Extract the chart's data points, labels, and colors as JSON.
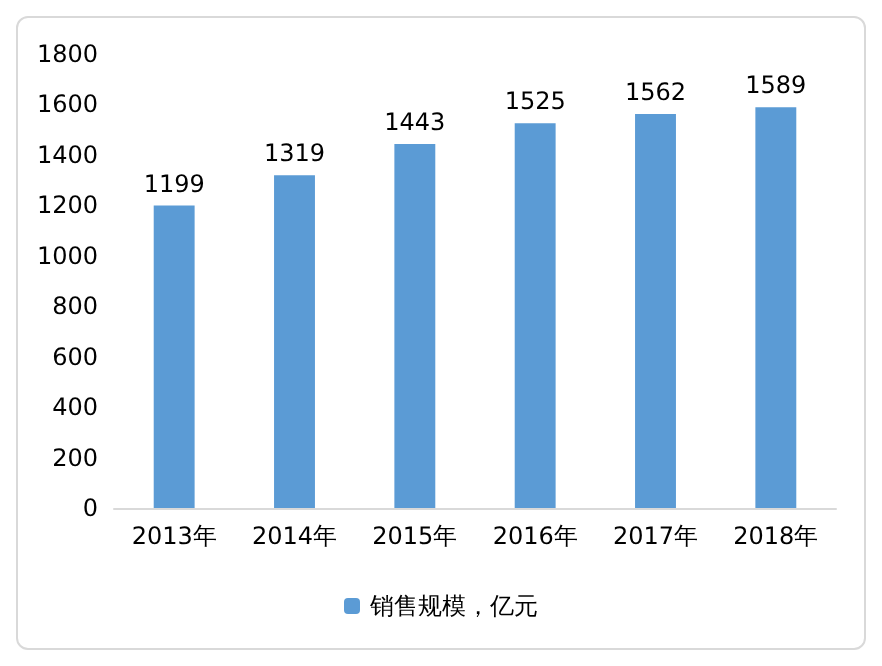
{
  "chart_data": {
    "type": "bar",
    "categories": [
      "2013年",
      "2014年",
      "2015年",
      "2016年",
      "2017年",
      "2018年"
    ],
    "series": [
      {
        "name": "销售规模，亿元",
        "color": "#5b9bd5",
        "values": [
          1199,
          1319,
          1443,
          1525,
          1562,
          1589
        ]
      }
    ],
    "ylim": [
      0,
      1800
    ],
    "yticks": [
      0,
      200,
      400,
      600,
      800,
      1000,
      1200,
      1400,
      1600,
      1800
    ],
    "data_labels": true,
    "legend": "bottom",
    "grid": false
  }
}
